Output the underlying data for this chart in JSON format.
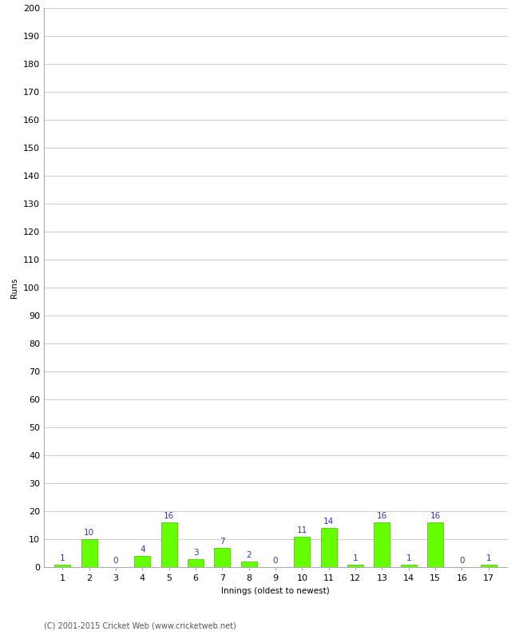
{
  "xlabel": "Innings (oldest to newest)",
  "ylabel": "Runs",
  "categories": [
    "1",
    "2",
    "3",
    "4",
    "5",
    "6",
    "7",
    "8",
    "9",
    "10",
    "11",
    "12",
    "13",
    "14",
    "15",
    "16",
    "17"
  ],
  "values": [
    1,
    10,
    0,
    4,
    16,
    3,
    7,
    2,
    0,
    11,
    14,
    1,
    16,
    1,
    16,
    0,
    1
  ],
  "bar_color": "#66ff00",
  "bar_edge_color": "#44bb00",
  "label_color": "#3333cc",
  "ylim": [
    0,
    200
  ],
  "yticks": [
    0,
    10,
    20,
    30,
    40,
    50,
    60,
    70,
    80,
    90,
    100,
    110,
    120,
    130,
    140,
    150,
    160,
    170,
    180,
    190,
    200
  ],
  "grid_color": "#cccccc",
  "background_color": "#ffffff",
  "footer": "(C) 2001-2015 Cricket Web (www.cricketweb.net)",
  "label_fontsize": 7.5,
  "axis_tick_fontsize": 8,
  "ylabel_fontsize": 7.5,
  "xlabel_fontsize": 7.5,
  "footer_fontsize": 7
}
